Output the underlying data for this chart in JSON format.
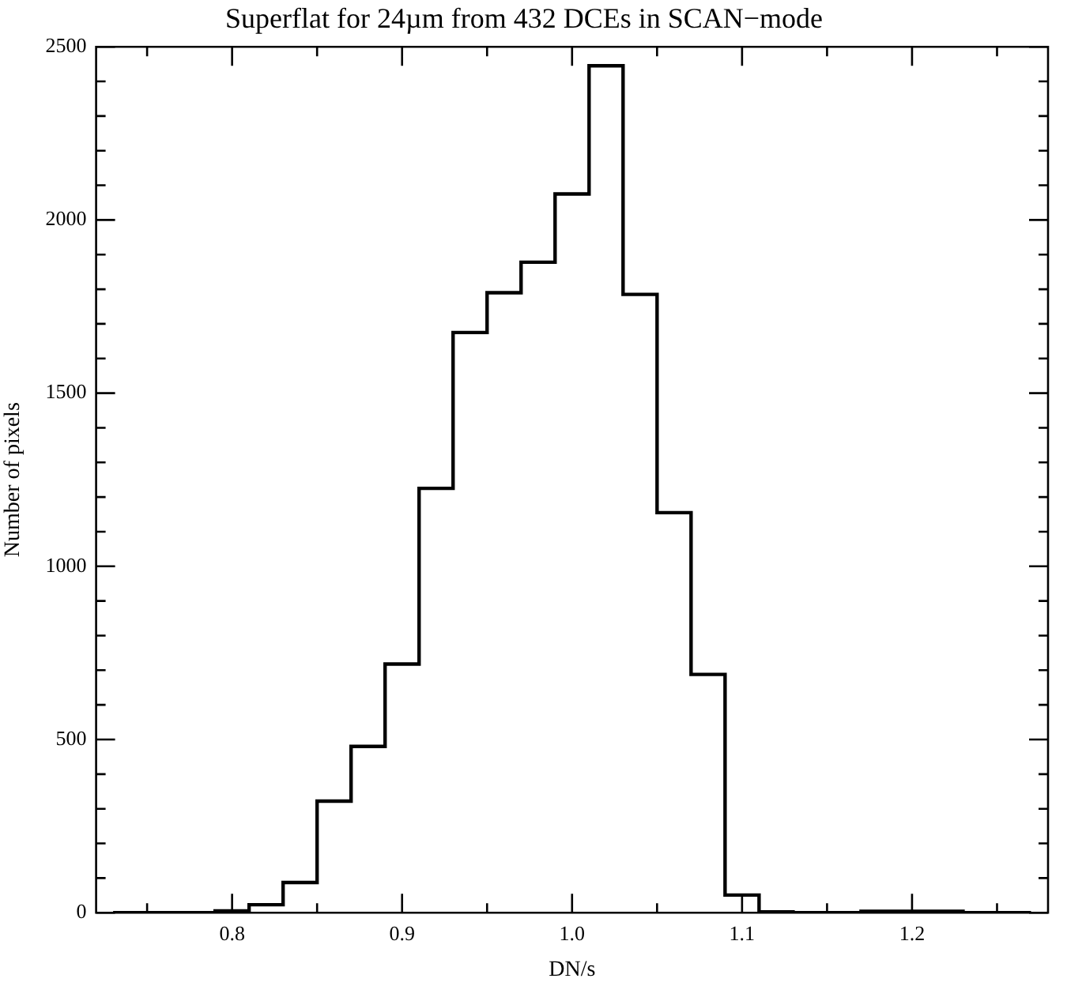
{
  "chart_data": {
    "type": "histogram",
    "title": "Superflat for 24µm from 432 DCEs in SCAN−mode",
    "xlabel": "DN/s",
    "ylabel": "Number of pixels",
    "bins": [
      0.73,
      0.75,
      0.77,
      0.79,
      0.81,
      0.83,
      0.85,
      0.87,
      0.89,
      0.91,
      0.93,
      0.95,
      0.97,
      0.99,
      1.01,
      1.03,
      1.05,
      1.07,
      1.09,
      1.11,
      1.13,
      1.15,
      1.17,
      1.19,
      1.21,
      1.23,
      1.25,
      1.27
    ],
    "values": [
      0,
      0,
      0,
      5,
      23,
      87,
      322,
      480,
      718,
      1225,
      1675,
      1790,
      1878,
      2075,
      2445,
      1785,
      1155,
      688,
      51,
      2,
      0,
      0,
      4,
      4,
      4,
      0,
      0
    ],
    "color": "#000000",
    "xlim": [
      0.72,
      1.28
    ],
    "xticks": [
      {
        "value": 0.75,
        "label": null
      },
      0.8,
      {
        "value": 0.85,
        "label": null
      },
      0.9,
      {
        "value": 0.95,
        "label": null
      },
      {
        "value": 1.0,
        "label": "1.0"
      },
      {
        "value": 1.05,
        "label": null
      },
      1.1,
      {
        "value": 1.15,
        "label": null
      },
      1.2,
      {
        "value": 1.25,
        "label": null
      }
    ],
    "ylim": [
      0,
      2500
    ],
    "yticks": [
      0,
      {
        "value": 100,
        "label": null
      },
      {
        "value": 200,
        "label": null
      },
      {
        "value": 300,
        "label": null
      },
      {
        "value": 400,
        "label": null
      },
      500,
      {
        "value": 600,
        "label": null
      },
      {
        "value": 700,
        "label": null
      },
      {
        "value": 800,
        "label": null
      },
      {
        "value": 900,
        "label": null
      },
      1000,
      {
        "value": 1100,
        "label": null
      },
      {
        "value": 1200,
        "label": null
      },
      {
        "value": 1300,
        "label": null
      },
      {
        "value": 1400,
        "label": null
      },
      1500,
      {
        "value": 1600,
        "label": null
      },
      {
        "value": 1700,
        "label": null
      },
      {
        "value": 1800,
        "label": null
      },
      {
        "value": 1900,
        "label": null
      },
      2000,
      {
        "value": 2100,
        "label": null
      },
      {
        "value": 2200,
        "label": null
      },
      {
        "value": 2300,
        "label": null
      },
      {
        "value": 2400,
        "label": null
      },
      2500
    ],
    "grid": false,
    "legend": false
  }
}
